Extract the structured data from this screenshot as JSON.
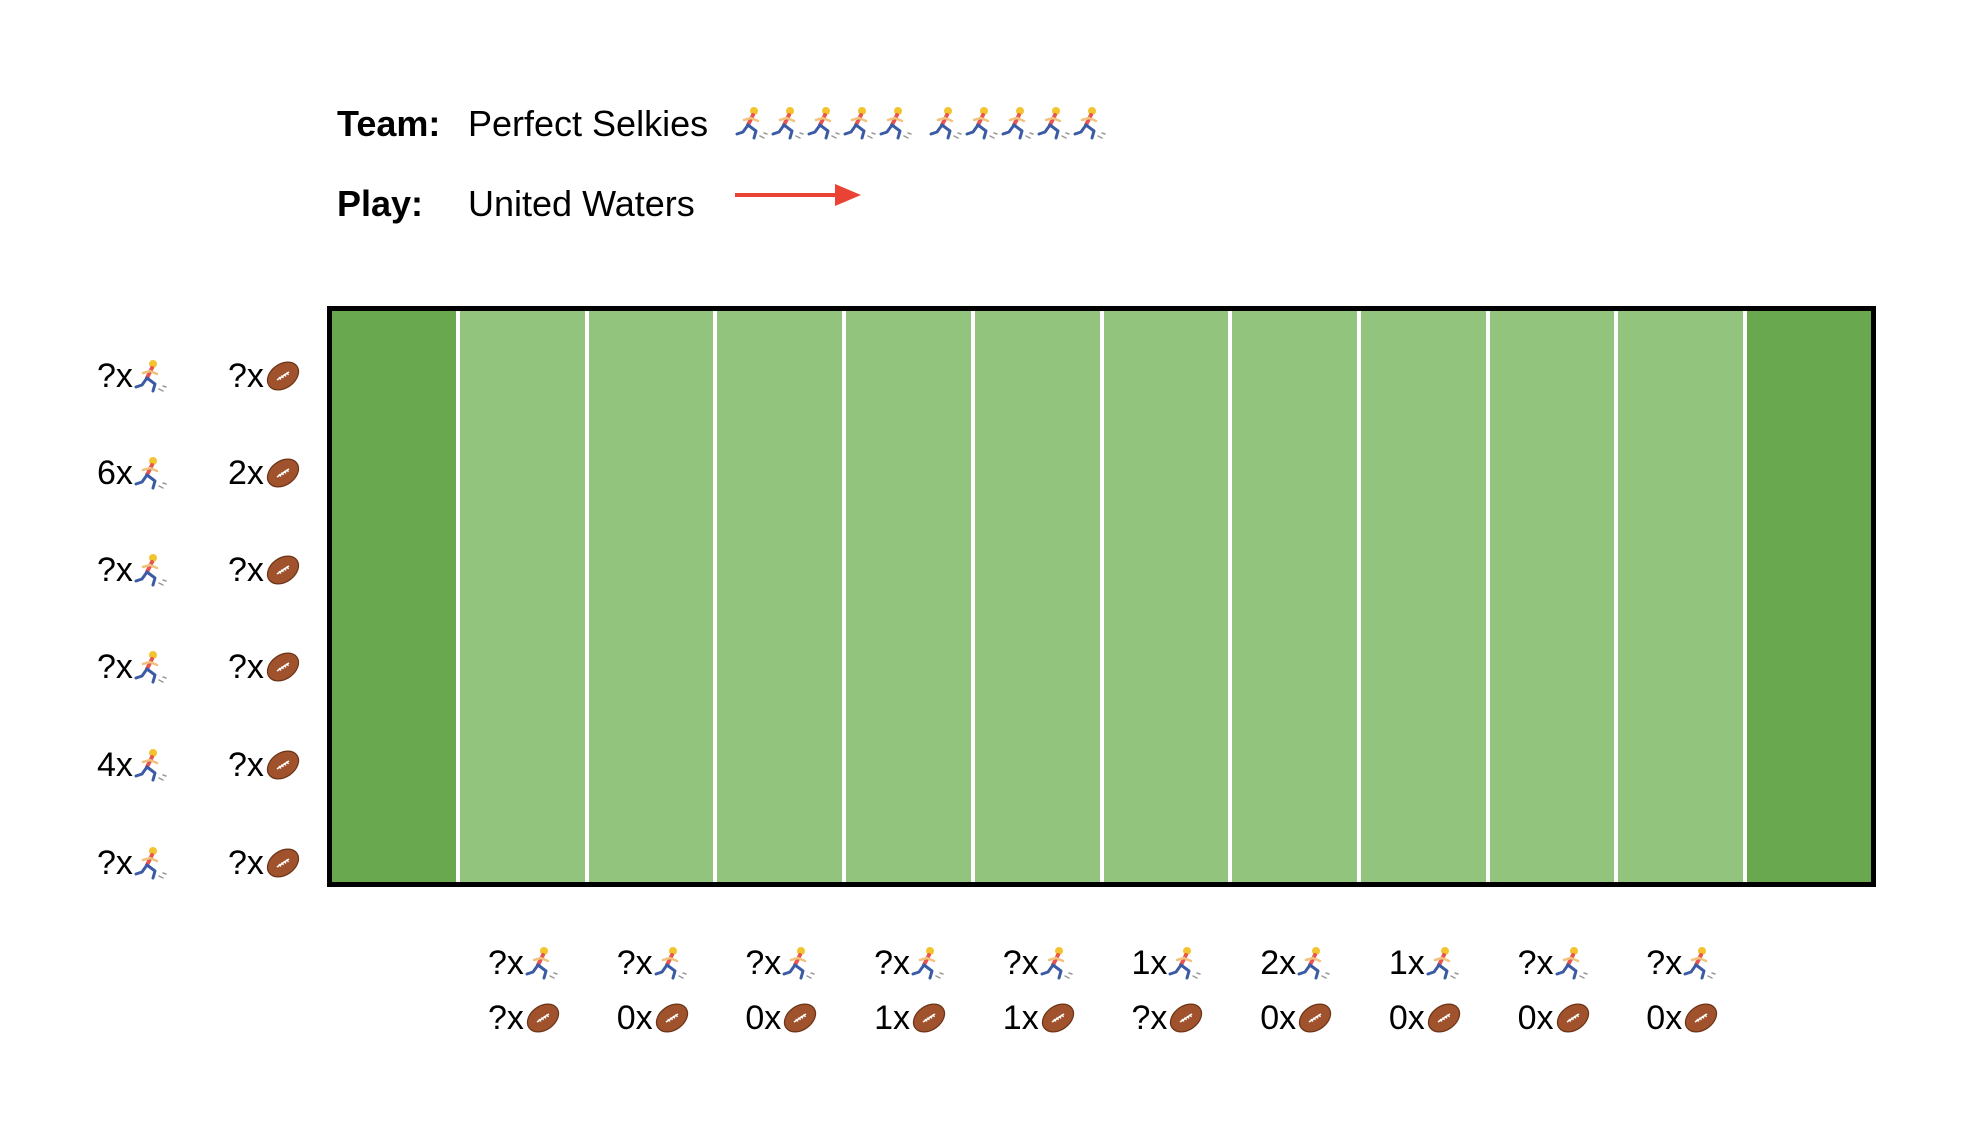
{
  "header": {
    "team_label": "Team:",
    "team_name": "Perfect Selkies",
    "team_players_groups": [
      5,
      5
    ],
    "play_label": "Play:",
    "play_name": "United Waters",
    "play_direction": "right",
    "arrow_color": "#ea4335"
  },
  "colors": {
    "field_light": "#93c47d",
    "field_dark": "#6aa84f",
    "yard_line": "#ffffff",
    "border": "#000000"
  },
  "icons": {
    "player": "runner-icon",
    "ball": "football-icon"
  },
  "field": {
    "zones": 10,
    "rows": 6
  },
  "left_stats": [
    {
      "players": "?x",
      "balls": "?x"
    },
    {
      "players": "6x",
      "balls": "2x"
    },
    {
      "players": "?x",
      "balls": "?x"
    },
    {
      "players": "?x",
      "balls": "?x"
    },
    {
      "players": "4x",
      "balls": "?x"
    },
    {
      "players": "?x",
      "balls": "?x"
    }
  ],
  "bottom_stats": [
    {
      "players": "?x",
      "balls": "?x"
    },
    {
      "players": "?x",
      "balls": "0x"
    },
    {
      "players": "?x",
      "balls": "0x"
    },
    {
      "players": "?x",
      "balls": "1x"
    },
    {
      "players": "?x",
      "balls": "1x"
    },
    {
      "players": "1x",
      "balls": "?x"
    },
    {
      "players": "2x",
      "balls": "0x"
    },
    {
      "players": "1x",
      "balls": "0x"
    },
    {
      "players": "?x",
      "balls": "0x"
    },
    {
      "players": "?x",
      "balls": "0x"
    }
  ]
}
